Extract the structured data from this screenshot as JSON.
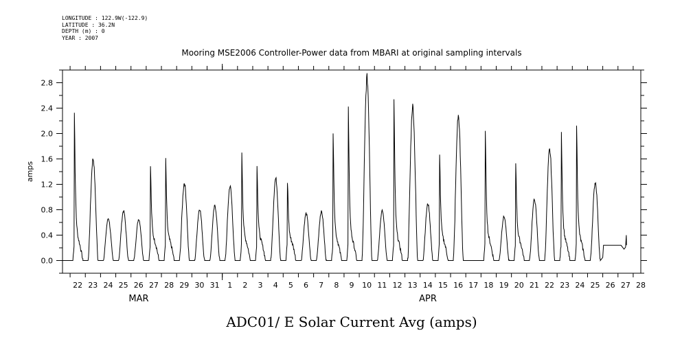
{
  "meta": {
    "longitude": "LONGITUDE : 122.9W(-122.9)",
    "latitude": "LATITUDE : 36.2N",
    "depth": "DEPTH (m) : 0",
    "year": "YEAR : 2007"
  },
  "chart_data": {
    "type": "line",
    "title": "Mooring MSE2006 Controller-Power data from MBARI at original sampling intervals",
    "xlabel": "ADC01/ E Solar Current Avg (amps)",
    "ylabel": "amps",
    "ylim": [
      -0.2,
      3.0
    ],
    "yticks": [
      "0.0",
      "0.4",
      "0.8",
      "1.2",
      "1.6",
      "2.0",
      "2.4",
      "2.8"
    ],
    "xlim": [
      "Mar 21 12:00",
      "Apr 28 12:00"
    ],
    "day_tick_labels": [
      "22",
      "23",
      "24",
      "25",
      "26",
      "27",
      "28",
      "29",
      "30",
      "31",
      "1",
      "2",
      "3",
      "4",
      "5",
      "6",
      "7",
      "8",
      "9",
      "10",
      "11",
      "12",
      "13",
      "14",
      "15",
      "16",
      "17",
      "18",
      "19",
      "20",
      "21",
      "22",
      "23",
      "24",
      "25",
      "26",
      "27",
      "28"
    ],
    "month_labels": [
      "MAR",
      "APR"
    ],
    "grid": false,
    "series": [
      {
        "daily_peak_amps": [
          2.33,
          1.6,
          0.66,
          0.78,
          0.65,
          1.47,
          1.59,
          1.22,
          0.81,
          0.86,
          1.17,
          1.71,
          1.48,
          1.29,
          1.23,
          0.74,
          0.77,
          2.02,
          2.42,
          2.88,
          0.78,
          2.53,
          2.43,
          0.89,
          1.65,
          2.27,
          0.0,
          2.07,
          0.69,
          1.53,
          0.96,
          1.74,
          2.04,
          2.14,
          1.23
        ],
        "note_apr17": "0.0 (flat)",
        "flat_segment_apr26_27": 0.24,
        "end_value_apr27": 0.4
      }
    ]
  }
}
